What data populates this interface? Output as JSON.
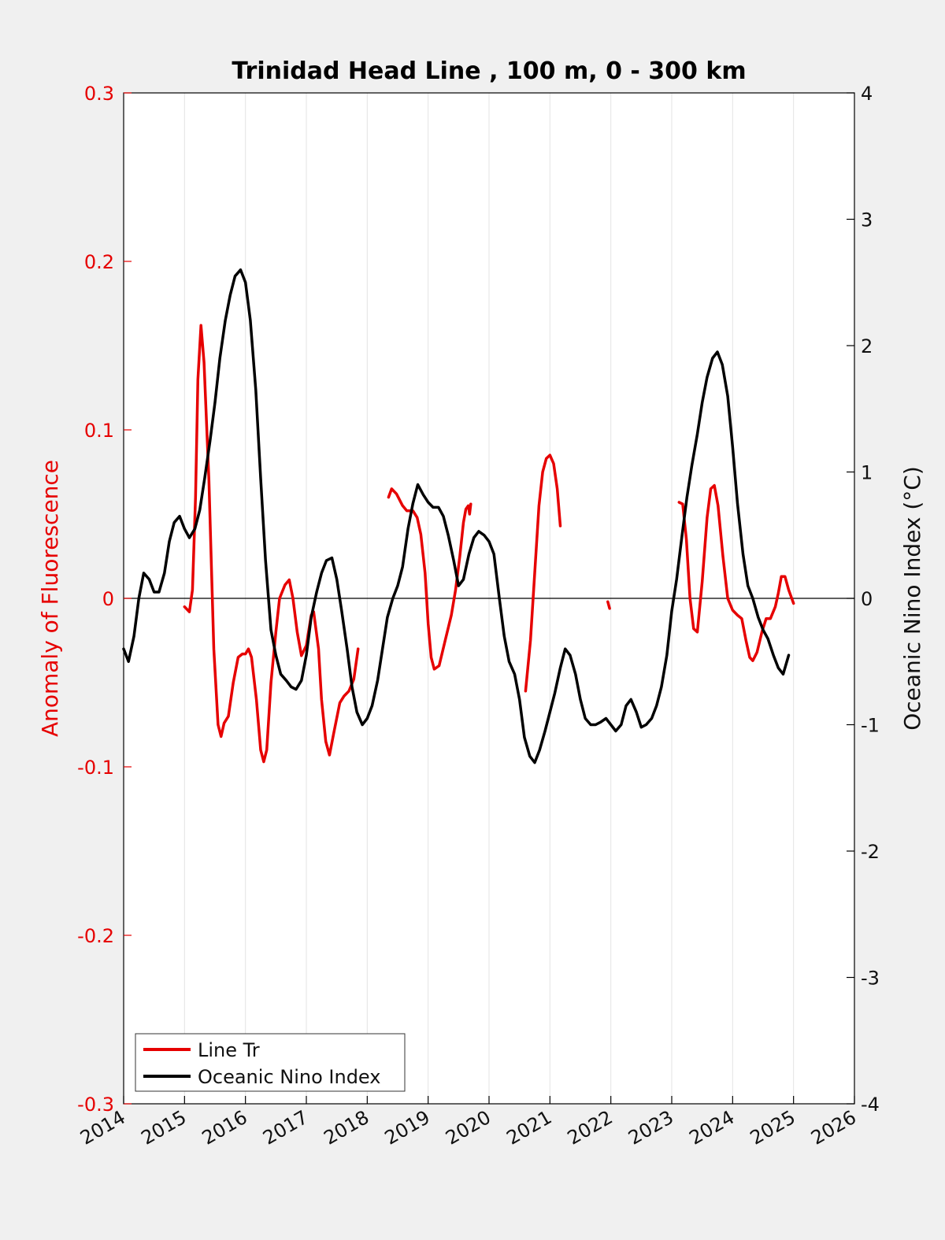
{
  "chart_data": {
    "type": "line",
    "title": "Trinidad Head Line , 100 m, 0 - 300 km",
    "xlabel": "",
    "ylabel_left": "Anomaly of Fluorescence",
    "ylabel_right": "Oceanic Nino Index (°C)",
    "xlim": [
      2014,
      2026
    ],
    "ylim_left": [
      -0.3,
      0.3
    ],
    "ylim_right": [
      -4,
      4
    ],
    "x_ticks": [
      "2014",
      "2015",
      "2016",
      "2017",
      "2018",
      "2019",
      "2020",
      "2021",
      "2022",
      "2023",
      "2024",
      "2025",
      "2026"
    ],
    "y_ticks_left": [
      "-0.3",
      "-0.2",
      "-0.1",
      "0",
      "0.1",
      "0.2",
      "0.3"
    ],
    "y_ticks_right": [
      "-4",
      "-3",
      "-2",
      "-1",
      "0",
      "1",
      "2",
      "3",
      "4"
    ],
    "grid": "vertical",
    "zero_line": true,
    "legend": "bottom-left",
    "colors": {
      "fluorescence": "#e60000",
      "oni": "#000000",
      "axes_bg": "#ffffff",
      "figure_bg": "#f0f0f0"
    },
    "series": [
      {
        "name": "Line Tr",
        "axis": "left",
        "color": "#e60000",
        "segments": [
          [
            [
              2015.0,
              -0.005
            ],
            [
              2015.08,
              -0.008
            ],
            [
              2015.13,
              0.005
            ],
            [
              2015.18,
              0.06
            ],
            [
              2015.22,
              0.13
            ],
            [
              2015.27,
              0.162
            ],
            [
              2015.32,
              0.14
            ],
            [
              2015.4,
              0.07
            ],
            [
              2015.48,
              -0.03
            ],
            [
              2015.55,
              -0.075
            ],
            [
              2015.6,
              -0.082
            ],
            [
              2015.65,
              -0.074
            ],
            [
              2015.72,
              -0.07
            ],
            [
              2015.8,
              -0.05
            ],
            [
              2015.88,
              -0.035
            ],
            [
              2015.95,
              -0.033
            ],
            [
              2016.0,
              -0.033
            ],
            [
              2016.05,
              -0.03
            ],
            [
              2016.1,
              -0.035
            ],
            [
              2016.18,
              -0.06
            ],
            [
              2016.25,
              -0.09
            ],
            [
              2016.3,
              -0.097
            ],
            [
              2016.35,
              -0.09
            ],
            [
              2016.42,
              -0.05
            ],
            [
              2016.5,
              -0.02
            ],
            [
              2016.56,
              0.0
            ],
            [
              2016.65,
              0.008
            ],
            [
              2016.72,
              0.011
            ],
            [
              2016.78,
              0.0
            ],
            [
              2016.85,
              -0.02
            ],
            [
              2016.92,
              -0.034
            ],
            [
              2017.0,
              -0.028
            ],
            [
              2017.08,
              -0.01
            ],
            [
              2017.12,
              -0.008
            ],
            [
              2017.2,
              -0.03
            ],
            [
              2017.25,
              -0.06
            ],
            [
              2017.32,
              -0.085
            ],
            [
              2017.38,
              -0.093
            ],
            [
              2017.45,
              -0.08
            ],
            [
              2017.55,
              -0.062
            ],
            [
              2017.62,
              -0.058
            ],
            [
              2017.7,
              -0.055
            ],
            [
              2017.78,
              -0.048
            ],
            [
              2017.85,
              -0.03
            ]
          ],
          [
            [
              2018.35,
              0.06
            ],
            [
              2018.4,
              0.065
            ],
            [
              2018.48,
              0.062
            ],
            [
              2018.58,
              0.055
            ],
            [
              2018.65,
              0.052
            ],
            [
              2018.75,
              0.052
            ],
            [
              2018.82,
              0.048
            ],
            [
              2018.88,
              0.038
            ],
            [
              2018.95,
              0.015
            ],
            [
              2019.0,
              -0.015
            ],
            [
              2019.05,
              -0.035
            ],
            [
              2019.1,
              -0.042
            ],
            [
              2019.18,
              -0.04
            ],
            [
              2019.28,
              -0.025
            ],
            [
              2019.38,
              -0.01
            ],
            [
              2019.45,
              0.005
            ],
            [
              2019.52,
              0.025
            ],
            [
              2019.58,
              0.045
            ],
            [
              2019.62,
              0.053
            ],
            [
              2019.66,
              0.055
            ],
            [
              2019.68,
              0.05
            ],
            [
              2019.7,
              0.056
            ]
          ],
          [
            [
              2020.6,
              -0.055
            ],
            [
              2020.68,
              -0.025
            ],
            [
              2020.75,
              0.015
            ],
            [
              2020.82,
              0.055
            ],
            [
              2020.88,
              0.075
            ],
            [
              2020.94,
              0.083
            ],
            [
              2021.0,
              0.085
            ],
            [
              2021.06,
              0.08
            ],
            [
              2021.12,
              0.065
            ],
            [
              2021.17,
              0.043
            ]
          ],
          [
            [
              2021.95,
              -0.002
            ],
            [
              2021.98,
              -0.006
            ]
          ],
          [
            [
              2023.12,
              0.057
            ],
            [
              2023.18,
              0.056
            ],
            [
              2023.24,
              0.035
            ],
            [
              2023.3,
              0.0
            ],
            [
              2023.36,
              -0.018
            ],
            [
              2023.42,
              -0.02
            ],
            [
              2023.5,
              0.01
            ],
            [
              2023.58,
              0.048
            ],
            [
              2023.64,
              0.065
            ],
            [
              2023.7,
              0.067
            ],
            [
              2023.76,
              0.055
            ],
            [
              2023.84,
              0.025
            ],
            [
              2023.92,
              0.0
            ],
            [
              2024.0,
              -0.007
            ],
            [
              2024.08,
              -0.01
            ],
            [
              2024.15,
              -0.012
            ],
            [
              2024.22,
              -0.025
            ],
            [
              2024.28,
              -0.035
            ],
            [
              2024.33,
              -0.037
            ],
            [
              2024.4,
              -0.032
            ],
            [
              2024.48,
              -0.02
            ],
            [
              2024.55,
              -0.012
            ],
            [
              2024.62,
              -0.012
            ],
            [
              2024.7,
              -0.005
            ],
            [
              2024.75,
              0.003
            ],
            [
              2024.8,
              0.013
            ],
            [
              2024.86,
              0.013
            ],
            [
              2024.92,
              0.005
            ],
            [
              2025.0,
              -0.003
            ]
          ]
        ]
      },
      {
        "name": "Oceanic Nino Index",
        "axis": "right",
        "color": "#000000",
        "points": [
          [
            2014.0,
            -0.4
          ],
          [
            2014.08,
            -0.5
          ],
          [
            2014.17,
            -0.3
          ],
          [
            2014.25,
            0.0
          ],
          [
            2014.33,
            0.2
          ],
          [
            2014.42,
            0.15
          ],
          [
            2014.5,
            0.05
          ],
          [
            2014.58,
            0.05
          ],
          [
            2014.67,
            0.2
          ],
          [
            2014.75,
            0.45
          ],
          [
            2014.83,
            0.6
          ],
          [
            2014.92,
            0.65
          ],
          [
            2015.0,
            0.55
          ],
          [
            2015.08,
            0.48
          ],
          [
            2015.17,
            0.55
          ],
          [
            2015.25,
            0.7
          ],
          [
            2015.33,
            0.95
          ],
          [
            2015.42,
            1.25
          ],
          [
            2015.5,
            1.55
          ],
          [
            2015.58,
            1.9
          ],
          [
            2015.67,
            2.2
          ],
          [
            2015.75,
            2.4
          ],
          [
            2015.83,
            2.55
          ],
          [
            2015.92,
            2.6
          ],
          [
            2016.0,
            2.5
          ],
          [
            2016.08,
            2.2
          ],
          [
            2016.17,
            1.65
          ],
          [
            2016.25,
            0.95
          ],
          [
            2016.33,
            0.3
          ],
          [
            2016.42,
            -0.25
          ],
          [
            2016.5,
            -0.45
          ],
          [
            2016.58,
            -0.6
          ],
          [
            2016.67,
            -0.65
          ],
          [
            2016.75,
            -0.7
          ],
          [
            2016.83,
            -0.72
          ],
          [
            2016.92,
            -0.65
          ],
          [
            2017.0,
            -0.45
          ],
          [
            2017.08,
            -0.15
          ],
          [
            2017.17,
            0.05
          ],
          [
            2017.25,
            0.2
          ],
          [
            2017.33,
            0.3
          ],
          [
            2017.42,
            0.32
          ],
          [
            2017.5,
            0.15
          ],
          [
            2017.58,
            -0.1
          ],
          [
            2017.67,
            -0.4
          ],
          [
            2017.75,
            -0.7
          ],
          [
            2017.83,
            -0.9
          ],
          [
            2017.92,
            -1.0
          ],
          [
            2018.0,
            -0.95
          ],
          [
            2018.08,
            -0.85
          ],
          [
            2018.17,
            -0.65
          ],
          [
            2018.25,
            -0.4
          ],
          [
            2018.33,
            -0.15
          ],
          [
            2018.42,
            0.0
          ],
          [
            2018.5,
            0.1
          ],
          [
            2018.58,
            0.25
          ],
          [
            2018.67,
            0.55
          ],
          [
            2018.75,
            0.75
          ],
          [
            2018.83,
            0.9
          ],
          [
            2018.92,
            0.82
          ],
          [
            2019.0,
            0.76
          ],
          [
            2019.08,
            0.72
          ],
          [
            2019.17,
            0.72
          ],
          [
            2019.25,
            0.65
          ],
          [
            2019.33,
            0.5
          ],
          [
            2019.42,
            0.3
          ],
          [
            2019.5,
            0.1
          ],
          [
            2019.58,
            0.15
          ],
          [
            2019.67,
            0.35
          ],
          [
            2019.75,
            0.48
          ],
          [
            2019.83,
            0.53
          ],
          [
            2019.92,
            0.5
          ],
          [
            2020.0,
            0.45
          ],
          [
            2020.08,
            0.35
          ],
          [
            2020.17,
            0.0
          ],
          [
            2020.25,
            -0.3
          ],
          [
            2020.33,
            -0.5
          ],
          [
            2020.42,
            -0.6
          ],
          [
            2020.5,
            -0.8
          ],
          [
            2020.58,
            -1.1
          ],
          [
            2020.67,
            -1.25
          ],
          [
            2020.75,
            -1.3
          ],
          [
            2020.83,
            -1.2
          ],
          [
            2020.92,
            -1.05
          ],
          [
            2021.0,
            -0.9
          ],
          [
            2021.08,
            -0.75
          ],
          [
            2021.17,
            -0.55
          ],
          [
            2021.25,
            -0.4
          ],
          [
            2021.33,
            -0.45
          ],
          [
            2021.42,
            -0.6
          ],
          [
            2021.5,
            -0.8
          ],
          [
            2021.58,
            -0.95
          ],
          [
            2021.67,
            -1.0
          ],
          [
            2021.75,
            -1.0
          ],
          [
            2021.83,
            -0.98
          ],
          [
            2021.92,
            -0.95
          ],
          [
            2022.0,
            -1.0
          ],
          [
            2022.08,
            -1.05
          ],
          [
            2022.17,
            -1.0
          ],
          [
            2022.25,
            -0.85
          ],
          [
            2022.33,
            -0.8
          ],
          [
            2022.42,
            -0.9
          ],
          [
            2022.5,
            -1.02
          ],
          [
            2022.58,
            -1.0
          ],
          [
            2022.67,
            -0.95
          ],
          [
            2022.75,
            -0.85
          ],
          [
            2022.83,
            -0.7
          ],
          [
            2022.92,
            -0.45
          ],
          [
            2023.0,
            -0.1
          ],
          [
            2023.08,
            0.15
          ],
          [
            2023.17,
            0.5
          ],
          [
            2023.25,
            0.8
          ],
          [
            2023.33,
            1.05
          ],
          [
            2023.42,
            1.3
          ],
          [
            2023.5,
            1.55
          ],
          [
            2023.58,
            1.75
          ],
          [
            2023.67,
            1.9
          ],
          [
            2023.75,
            1.95
          ],
          [
            2023.83,
            1.85
          ],
          [
            2023.92,
            1.6
          ],
          [
            2024.0,
            1.2
          ],
          [
            2024.08,
            0.75
          ],
          [
            2024.17,
            0.35
          ],
          [
            2024.25,
            0.1
          ],
          [
            2024.33,
            0.0
          ],
          [
            2024.42,
            -0.15
          ],
          [
            2024.5,
            -0.25
          ],
          [
            2024.58,
            -0.32
          ],
          [
            2024.67,
            -0.45
          ],
          [
            2024.75,
            -0.55
          ],
          [
            2024.83,
            -0.6
          ],
          [
            2024.92,
            -0.45
          ]
        ]
      }
    ],
    "legend_entries": [
      "Line Tr",
      "Oceanic Nino Index"
    ]
  }
}
